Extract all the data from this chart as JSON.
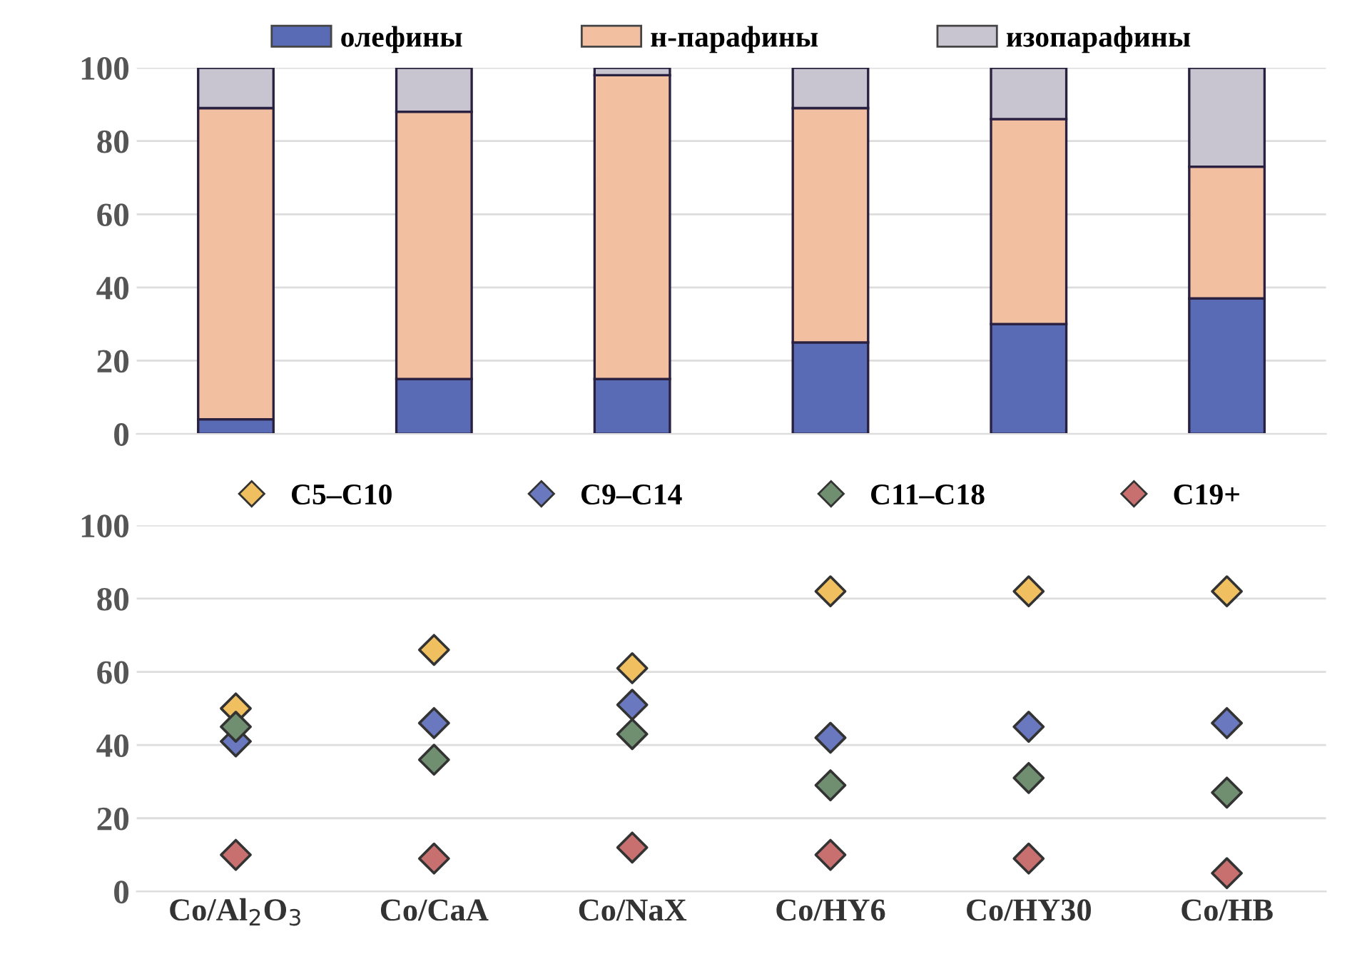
{
  "chart_data": [
    {
      "type": "bar",
      "stacked": true,
      "categories": [
        null,
        null,
        null,
        null,
        null,
        null
      ],
      "ylim": [
        0,
        100
      ],
      "yticks": [
        0,
        20,
        40,
        60,
        80,
        100
      ],
      "grid": "y",
      "legend": "top",
      "series": [
        {
          "name": "олефины",
          "color": "#5a6bb5",
          "values": [
            4,
            15,
            15,
            25,
            30,
            37
          ]
        },
        {
          "name": "н-парафины",
          "color": "#f2bfa0",
          "values": [
            85,
            73,
            83,
            64,
            56,
            36
          ]
        },
        {
          "name": "изопарафины",
          "color": "#c8c4d0",
          "values": [
            11,
            12,
            2,
            11,
            14,
            27
          ]
        }
      ]
    },
    {
      "type": "scatter",
      "marker": "diamond",
      "categories": [
        "Co/Al$_{2}$O$_{3}$",
        "Co/CaA",
        "Co/NaX",
        "Co/HY6",
        "Co/HY30",
        "Co/HB"
      ],
      "ylim": [
        0,
        100
      ],
      "yticks": [
        0,
        20,
        40,
        60,
        80,
        100
      ],
      "grid": "y",
      "legend": "top",
      "series": [
        {
          "name": "C5–C10",
          "color": "#f0c060",
          "values": [
            50,
            66,
            61,
            82,
            82,
            82
          ]
        },
        {
          "name": "C9–C14",
          "color": "#6a78c0",
          "values": [
            41,
            46,
            51,
            42,
            45,
            46
          ]
        },
        {
          "name": "C11–C18",
          "color": "#6f8f70",
          "values": [
            45,
            36,
            43,
            29,
            31,
            27
          ]
        },
        {
          "name": "C19+",
          "color": "#c87070",
          "values": [
            10,
            9,
            12,
            10,
            9,
            5
          ]
        }
      ]
    }
  ]
}
